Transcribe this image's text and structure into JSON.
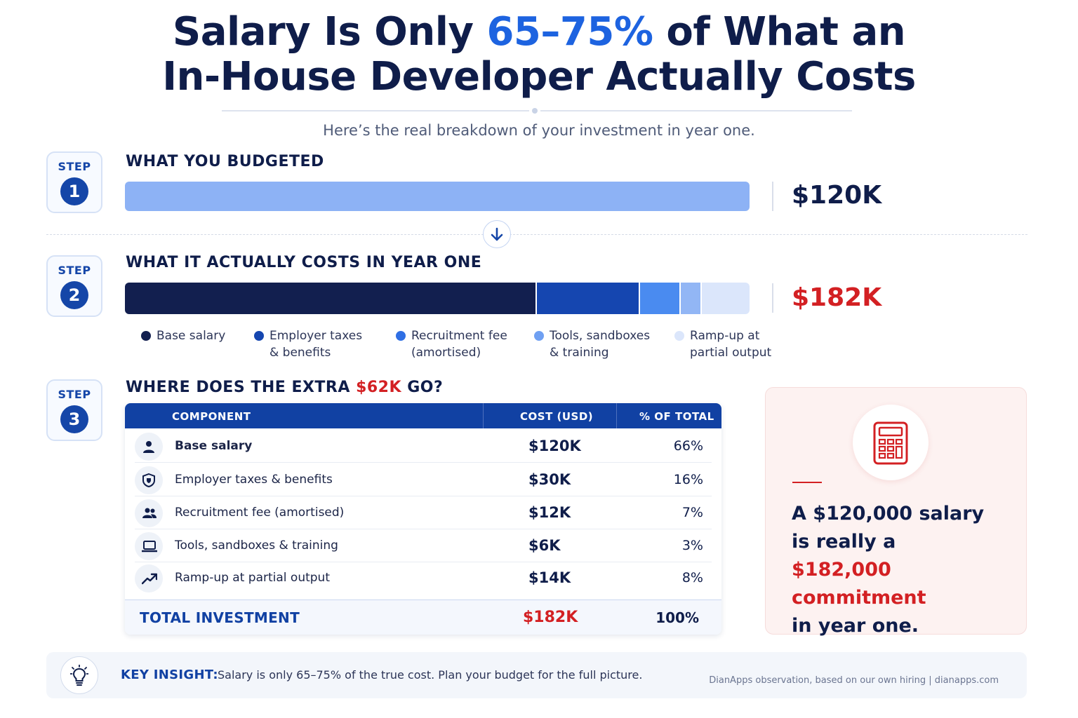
{
  "header": {
    "title_line1_pre": "Salary Is Only ",
    "title_highlight": "65–75%",
    "title_line1_post": " of What an",
    "title_line2": "In-House Developer Actually Costs",
    "subtitle": "Here’s the real breakdown of your investment in year one."
  },
  "step_label": "STEP",
  "steps": [
    {
      "number": "1",
      "title": "WHAT YOU BUDGETED",
      "value": "$120K"
    },
    {
      "number": "2",
      "title": "WHAT IT ACTUALLY COSTS IN YEAR ONE",
      "value": "$182K"
    },
    {
      "number": "3",
      "title_pre": "WHERE DOES THE EXTRA ",
      "title_highlight": "$62K",
      "title_post": " GO?"
    }
  ],
  "chart_data": {
    "type": "bar",
    "orientation": "horizontal-stacked",
    "budget_bar": {
      "label": "What you budgeted",
      "value": 120,
      "unit": "$K"
    },
    "series": [
      {
        "name": "Base salary",
        "value": 120,
        "color": "#121f4f"
      },
      {
        "name": "Employer taxes & benefits",
        "value": 30,
        "color": "#1546b0"
      },
      {
        "name": "Recruitment fee (amortised)",
        "value": 12,
        "color": "#4a8bf0"
      },
      {
        "name": "Tools, sandboxes & training",
        "value": 6,
        "color": "#92b6f5"
      },
      {
        "name": "Ramp-up at partial output",
        "value": 14,
        "color": "#dbe6fb"
      }
    ],
    "total": 182
  },
  "legend": [
    {
      "line1": "Base salary",
      "line2": "",
      "color": "#121f4f"
    },
    {
      "line1": "Employer taxes",
      "line2": "& benefits",
      "color": "#1546b0"
    },
    {
      "line1": "Recruitment fee",
      "line2": "(amortised)",
      "color": "#2f6fe4"
    },
    {
      "line1": "Tools, sandboxes",
      "line2": "& training",
      "color": "#6fa0f2"
    },
    {
      "line1": "Ramp-up at",
      "line2": "partial output",
      "color": "#dbe6fb"
    }
  ],
  "table": {
    "headers": [
      "COMPONENT",
      "COST (USD)",
      "% OF TOTAL"
    ],
    "rows": [
      {
        "icon": "user-icon",
        "component": "Base salary",
        "cost": "$120K",
        "pct": "66%"
      },
      {
        "icon": "shield-icon",
        "component": "Employer taxes & benefits",
        "cost": "$30K",
        "pct": "16%"
      },
      {
        "icon": "people-icon",
        "component": "Recruitment fee (amortised)",
        "cost": "$12K",
        "pct": "7%"
      },
      {
        "icon": "laptop-icon",
        "component": "Tools, sandboxes & training",
        "cost": "$6K",
        "pct": "3%"
      },
      {
        "icon": "trend-up-icon",
        "component": "Ramp-up at partial output",
        "cost": "$14K",
        "pct": "8%"
      }
    ],
    "total": {
      "label": "TOTAL INVESTMENT",
      "cost": "$182K",
      "pct": "100%"
    }
  },
  "callout": {
    "icon": "calculator-icon",
    "line1": "A $120,000 salary",
    "line2": "is really a",
    "line3": "$182,000 commitment",
    "line4": "in year one."
  },
  "insight": {
    "icon": "lightbulb-icon",
    "label": "KEY INSIGHT:",
    "text": "Salary is only 65–75% of the true cost.  Plan your budget for the full picture.",
    "source": "DianApps observation, based on our own hiring  |  dianapps.com"
  },
  "colors": {
    "navy": "#0f1d4a",
    "blue": "#1d63e0",
    "red": "#d32023"
  }
}
